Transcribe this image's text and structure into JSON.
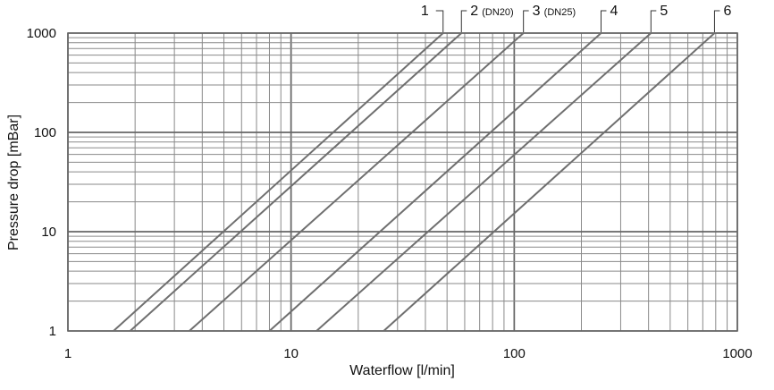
{
  "chart_data": {
    "type": "line",
    "title": "",
    "xlabel": "Waterflow [l/min]",
    "ylabel": "Pressure drop [mBar]",
    "x_scale": "log",
    "y_scale": "log",
    "xlim": [
      1,
      1000
    ],
    "ylim": [
      1,
      1000
    ],
    "grid": true,
    "x_tick_labels": [
      "1",
      "10",
      "100",
      "1000"
    ],
    "y_tick_labels": [
      "1",
      "10",
      "100",
      "1000"
    ],
    "series": [
      {
        "name": "1",
        "note": "",
        "x": [
          1.6,
          48
        ],
        "y": [
          1,
          1000
        ]
      },
      {
        "name": "2",
        "note": "(DN20)",
        "x": [
          1.9,
          58
        ],
        "y": [
          1,
          1000
        ]
      },
      {
        "name": "3",
        "note": "(DN25)",
        "x": [
          3.5,
          110
        ],
        "y": [
          1,
          1000
        ]
      },
      {
        "name": "4",
        "note": "",
        "x": [
          8,
          245
        ],
        "y": [
          1,
          1000
        ]
      },
      {
        "name": "5",
        "note": "",
        "x": [
          13,
          410
        ],
        "y": [
          1,
          1000
        ]
      },
      {
        "name": "6",
        "note": "",
        "x": [
          26,
          790
        ],
        "y": [
          1,
          1000
        ]
      }
    ],
    "colors": {
      "line": "#6f6f6f",
      "grid_major": "#666666",
      "grid_minor": "#8a8a8a",
      "text": "#111111"
    }
  }
}
